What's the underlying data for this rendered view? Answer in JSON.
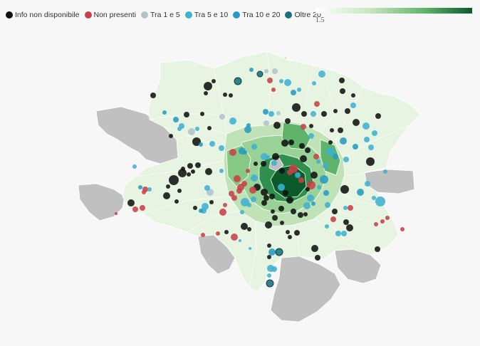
{
  "legend": {
    "items": [
      {
        "label": "Info non disponibile",
        "color": "#111111"
      },
      {
        "label": "Non presenti",
        "color": "#c94048"
      },
      {
        "label": "Tra 1 e 5",
        "color": "#b1c4cc"
      },
      {
        "label": "Tra 5 e 10",
        "color": "#3fb1d1"
      },
      {
        "label": "Tra 10 e 20",
        "color": "#259bc3"
      },
      {
        "label": "Oltre 20",
        "color": "#19707f"
      }
    ]
  },
  "scale": {
    "tick_label": "1.5",
    "colors": [
      "#ffffff",
      "#c6e7bf",
      "#5fb36b",
      "#0b5a2a"
    ]
  },
  "map": {
    "colors": {
      "outer_land": "#c0c0c0",
      "district_light": "#e6f4e1",
      "district_mid": "#98d296",
      "district_dark": "#2f8f4c",
      "district_darkest": "#0b5a2a",
      "border": "#ffffff"
    }
  }
}
